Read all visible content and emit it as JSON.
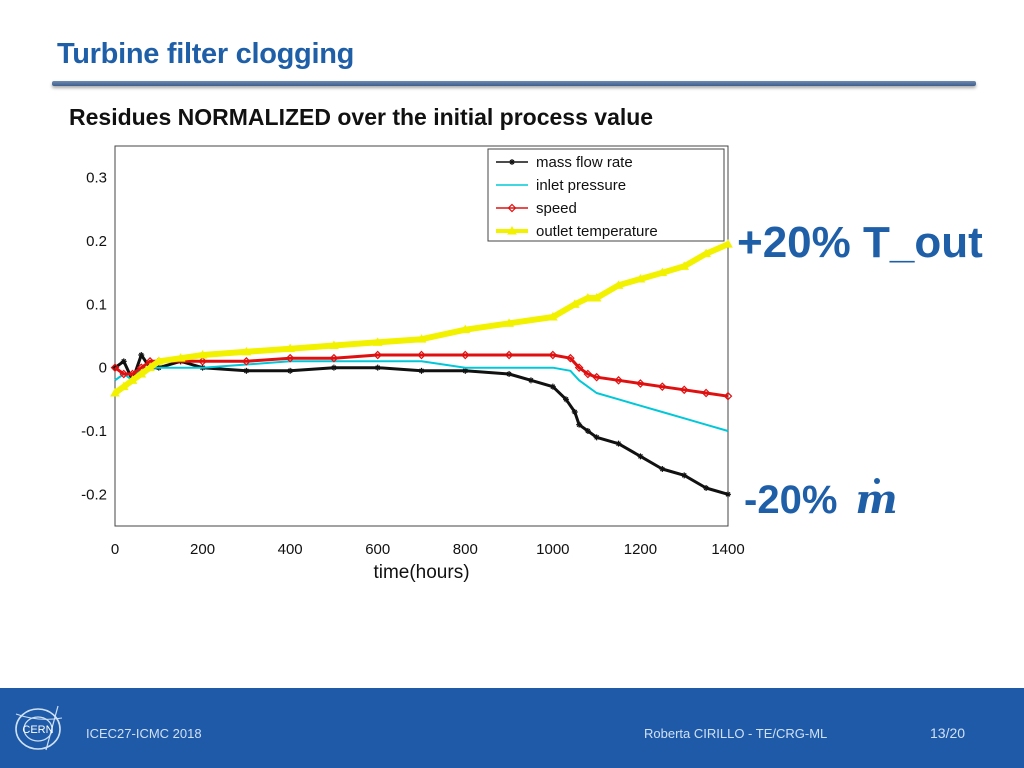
{
  "slide": {
    "title": "Turbine filter clogging",
    "subtitle": "Residues NORMALIZED over the initial process value"
  },
  "annotations": {
    "increase": "+20% T_out",
    "decrease_prefix": "-20%",
    "decrease_symbol": "m"
  },
  "footer": {
    "left": "ICEC27-ICMC 2018",
    "center": "Roberta CIRILLO - TE/CRG-ML",
    "page": "13/20",
    "logo_text": "CERN"
  },
  "chart_data": {
    "type": "line",
    "xlabel": "time(hours)",
    "ylabel": "",
    "xlim": [
      0,
      1400
    ],
    "ylim": [
      -0.25,
      0.35
    ],
    "x_ticks": [
      0,
      200,
      400,
      600,
      800,
      1000,
      1200,
      1400
    ],
    "y_ticks": [
      -0.2,
      -0.1,
      0,
      0.1,
      0.2,
      0.3
    ],
    "grid": true,
    "legend_position": "top-right",
    "series": [
      {
        "name": "mass flow rate",
        "color": "#111111",
        "marker": "asterisk",
        "x": [
          0,
          20,
          40,
          60,
          80,
          100,
          150,
          200,
          300,
          400,
          500,
          600,
          700,
          800,
          900,
          950,
          1000,
          1030,
          1050,
          1060,
          1080,
          1100,
          1150,
          1200,
          1250,
          1300,
          1350,
          1400
        ],
        "y": [
          0.0,
          0.01,
          -0.02,
          0.02,
          0.0,
          0.0,
          0.01,
          0.0,
          -0.005,
          -0.005,
          0.0,
          0.0,
          -0.005,
          -0.005,
          -0.01,
          -0.02,
          -0.03,
          -0.05,
          -0.07,
          -0.09,
          -0.1,
          -0.11,
          -0.12,
          -0.14,
          -0.16,
          -0.17,
          -0.19,
          -0.2
        ]
      },
      {
        "name": "inlet pressure",
        "color": "#00c8d8",
        "marker": "none",
        "x": [
          0,
          20,
          40,
          60,
          80,
          100,
          200,
          300,
          400,
          500,
          600,
          700,
          800,
          900,
          1000,
          1040,
          1060,
          1080,
          1100,
          1150,
          1200,
          1250,
          1300,
          1350,
          1400
        ],
        "y": [
          -0.02,
          -0.01,
          -0.02,
          0.0,
          0.0,
          0.0,
          0.0,
          0.005,
          0.01,
          0.01,
          0.01,
          0.01,
          0.0,
          0.0,
          0.0,
          -0.005,
          -0.02,
          -0.03,
          -0.04,
          -0.05,
          -0.06,
          -0.07,
          -0.08,
          -0.09,
          -0.1
        ]
      },
      {
        "name": "speed",
        "color": "#e01010",
        "marker": "diamond",
        "x": [
          0,
          20,
          40,
          60,
          80,
          100,
          200,
          300,
          400,
          500,
          600,
          700,
          800,
          900,
          1000,
          1040,
          1060,
          1080,
          1100,
          1150,
          1200,
          1250,
          1300,
          1350,
          1400
        ],
        "y": [
          0.0,
          -0.01,
          -0.01,
          0.0,
          0.01,
          0.01,
          0.01,
          0.01,
          0.015,
          0.015,
          0.02,
          0.02,
          0.02,
          0.02,
          0.02,
          0.015,
          0.0,
          -0.01,
          -0.015,
          -0.02,
          -0.025,
          -0.03,
          -0.035,
          -0.04,
          -0.045
        ]
      },
      {
        "name": "outlet temperature",
        "color": "#f2f200",
        "marker": "triangle",
        "x": [
          0,
          20,
          40,
          60,
          80,
          100,
          150,
          200,
          300,
          400,
          500,
          600,
          700,
          800,
          900,
          1000,
          1050,
          1080,
          1100,
          1150,
          1200,
          1250,
          1300,
          1350,
          1400
        ],
        "y": [
          -0.04,
          -0.03,
          -0.02,
          -0.01,
          0.0,
          0.01,
          0.015,
          0.02,
          0.025,
          0.03,
          0.035,
          0.04,
          0.045,
          0.06,
          0.07,
          0.08,
          0.1,
          0.11,
          0.11,
          0.13,
          0.14,
          0.15,
          0.16,
          0.18,
          0.195
        ]
      }
    ]
  }
}
